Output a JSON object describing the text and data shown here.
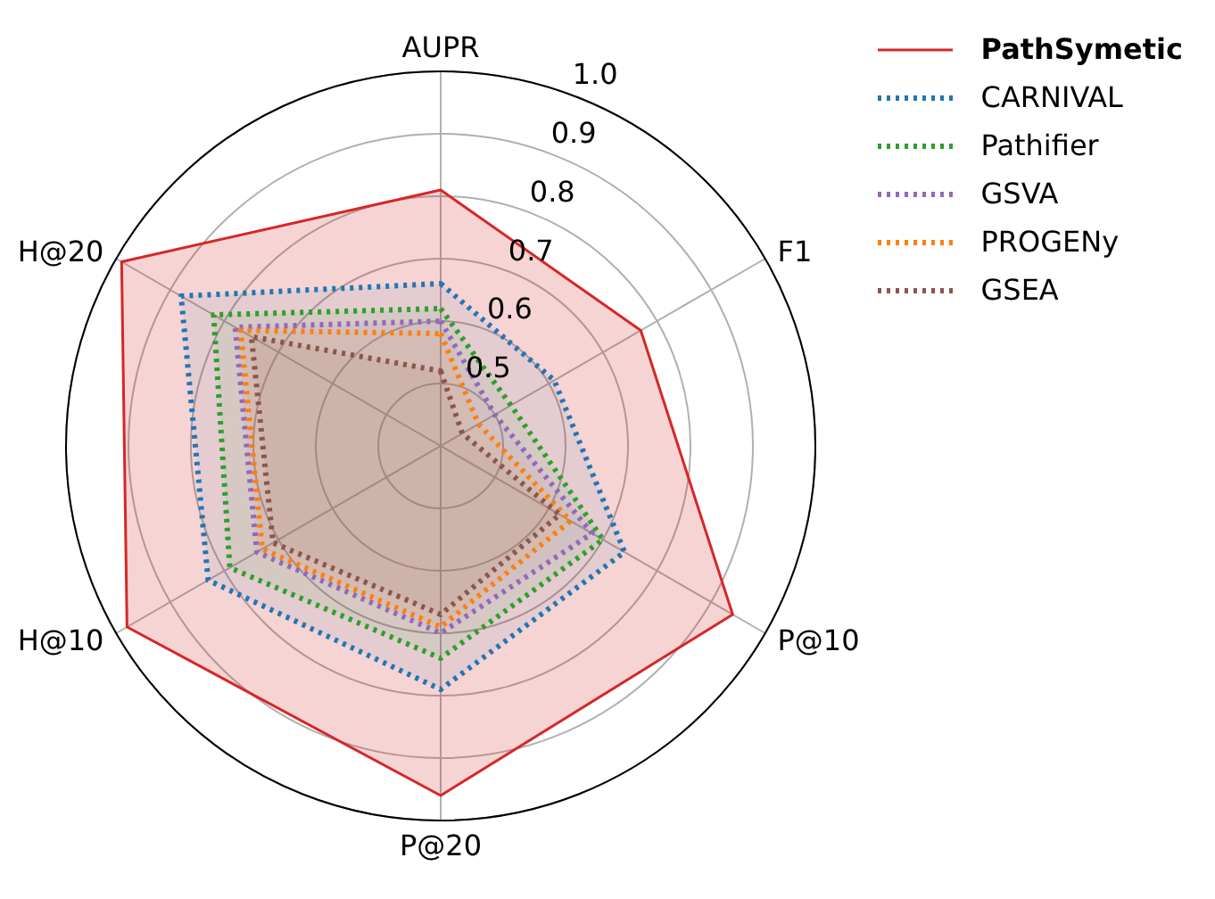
{
  "chart_data": {
    "type": "radar",
    "categories": [
      "AUPR",
      "F1",
      "P@10",
      "P@20",
      "H@10",
      "H@20"
    ],
    "ylim": [
      0.4,
      1.0
    ],
    "yticks": [
      0.5,
      0.6,
      0.7,
      0.8,
      0.9,
      {
        "value": 1,
        "label": "1.0"
      }
    ],
    "grid": true,
    "legend": "top right",
    "series": [
      {
        "name": "PathSymetic",
        "color": "#d62728",
        "line_style": "solid",
        "values": [
          0.81,
          0.77,
          0.94,
          0.96,
          0.98,
          0.99
        ]
      },
      {
        "name": "CARNIVAL",
        "color": "#1f77b4",
        "line_style": "dotted",
        "values": [
          0.66,
          0.61,
          0.74,
          0.79,
          0.83,
          0.88
        ]
      },
      {
        "name": "Pathifier",
        "color": "#2ca02c",
        "line_style": "dotted",
        "values": [
          0.62,
          0.53,
          0.7,
          0.74,
          0.79,
          0.82
        ]
      },
      {
        "name": "GSVA",
        "color": "#9467bd",
        "line_style": "dotted",
        "values": [
          0.6,
          0.5,
          0.68,
          0.7,
          0.74,
          0.78
        ]
      },
      {
        "name": "PROGENy",
        "color": "#ff7f0e",
        "line_style": "dotted",
        "values": [
          0.58,
          0.47,
          0.64,
          0.69,
          0.73,
          0.77
        ]
      },
      {
        "name": "GSEA",
        "color": "#8c564b",
        "line_style": "dotted",
        "values": [
          0.52,
          0.44,
          0.62,
          0.67,
          0.71,
          0.75
        ]
      }
    ]
  }
}
